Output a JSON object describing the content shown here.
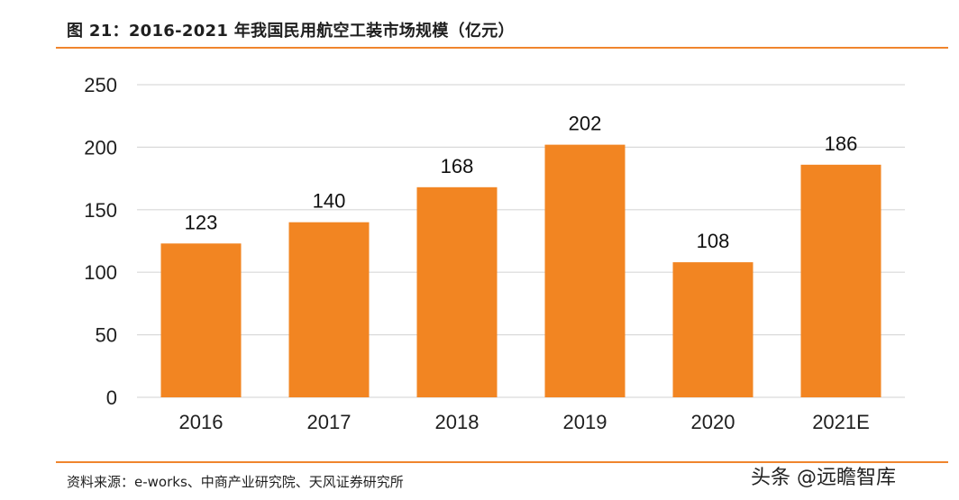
{
  "header": {
    "title": "图 21：2016-2021 年我国民用航空工装市场规模（亿元）"
  },
  "footer": {
    "source": "资料来源：e-works、中商产业研究院、天风证券研究所",
    "watermark": "头条 @远瞻智库"
  },
  "colors": {
    "bar": "#f28522",
    "accent_rule": "#f0852d",
    "grid": "#d9d9d9",
    "text": "#1f1f1f"
  },
  "chart_data": {
    "type": "bar",
    "categories": [
      "2016",
      "2017",
      "2018",
      "2019",
      "2020",
      "2021E"
    ],
    "values": [
      123,
      140,
      168,
      202,
      108,
      186
    ],
    "data_labels": [
      "123",
      "140",
      "168",
      "202",
      "108",
      "186"
    ],
    "yticks": [
      "0",
      "50",
      "100",
      "150",
      "200",
      "250"
    ],
    "ylim": [
      0,
      250
    ],
    "grid": true,
    "legend": "none",
    "title": "",
    "xlabel": "",
    "ylabel": ""
  }
}
